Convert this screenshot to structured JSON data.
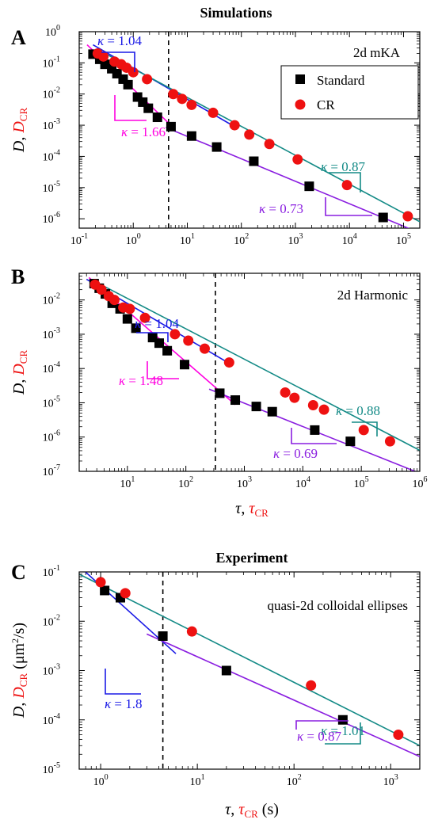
{
  "chart_data": [
    {
      "panel": "A",
      "type": "scatter",
      "title": "Simulations",
      "label": "2d mKA",
      "xlabel": "τ, τCR",
      "ylabel": "D, DCR",
      "xscale": "log",
      "yscale": "log",
      "xlim": [
        0.1,
        200000
      ],
      "ylim": [
        5e-07,
        1
      ],
      "xticks": [
        "10-1",
        "100",
        "101",
        "102",
        "103",
        "104",
        "105"
      ],
      "yticks": [
        "10-6",
        "10-5",
        "10-4",
        "10-3",
        "10-2",
        "10-1",
        "100"
      ],
      "legend": {
        "position": "top-right",
        "entries": [
          "Standard",
          "CR"
        ]
      },
      "colors": {
        "standard": "#000000",
        "cr": "#ee1111",
        "blue": "#1a1ae6",
        "magenta": "#ff00e0",
        "teal": "#138a86",
        "purple": "#8a1ee0"
      },
      "vline_x": 4.5,
      "series": [
        {
          "name": "Standard",
          "marker": "square",
          "x": [
            0.18,
            0.24,
            0.3,
            0.4,
            0.5,
            0.65,
            0.8,
            1.2,
            1.5,
            1.9,
            2.8,
            5.0,
            12,
            35,
            170,
            1800,
            42000
          ],
          "y": [
            0.19,
            0.13,
            0.09,
            0.065,
            0.045,
            0.03,
            0.02,
            0.008,
            0.0055,
            0.0035,
            0.0018,
            0.0009,
            0.00045,
            0.0002,
            7e-05,
            1.1e-05,
            1.1e-06
          ]
        },
        {
          "name": "CR",
          "marker": "circle",
          "x": [
            0.22,
            0.28,
            0.45,
            0.6,
            0.75,
            1.0,
            1.8,
            5.5,
            8,
            12,
            30,
            75,
            140,
            330,
            1100,
            9000,
            120000
          ],
          "y": [
            0.2,
            0.16,
            0.11,
            0.09,
            0.07,
            0.05,
            0.03,
            0.01,
            0.007,
            0.0045,
            0.0025,
            0.001,
            0.0005,
            0.00025,
            8e-05,
            1.2e-05,
            1.2e-06
          ]
        }
      ],
      "fits": [
        {
          "color": "blue",
          "kappa": "κ = 1.04",
          "x": [
            0.18,
            75
          ],
          "y": [
            0.38,
            0.0009
          ]
        },
        {
          "color": "magenta",
          "kappa": "κ = 1.66",
          "x": [
            0.14,
            6
          ],
          "y": [
            0.38,
            0.00073
          ]
        },
        {
          "color": "teal",
          "kappa": "κ = 0.87",
          "x": [
            0.3,
            200000
          ],
          "y": [
            0.2,
            8e-07
          ]
        },
        {
          "color": "purple",
          "kappa": "κ = 0.73",
          "x": [
            4,
            200000
          ],
          "y": [
            0.00085,
            3.5e-07
          ]
        }
      ]
    },
    {
      "panel": "B",
      "type": "scatter",
      "title": "",
      "label": "2d Harmonic",
      "xlabel": "τ, τCR",
      "ylabel": "D, DCR",
      "xscale": "log",
      "yscale": "log",
      "xlim": [
        1.5,
        1000000
      ],
      "ylim": [
        1e-07,
        0.06
      ],
      "xticks": [
        "101",
        "102",
        "103",
        "104",
        "105",
        "106"
      ],
      "yticks": [
        "10-7",
        "10-6",
        "10-5",
        "10-4",
        "10-3",
        "10-2"
      ],
      "vline_x": 320,
      "series": [
        {
          "name": "Standard",
          "marker": "square",
          "x": [
            2.7,
            3.3,
            4.2,
            5.5,
            7.5,
            10,
            14,
            27,
            35,
            48,
            95,
            380,
            700,
            1600,
            3000,
            16000,
            65000
          ],
          "y": [
            0.03,
            0.022,
            0.015,
            0.008,
            0.0055,
            0.0028,
            0.0015,
            0.0008,
            0.00055,
            0.00033,
            0.00013,
            1.9e-05,
            1.2e-05,
            7.8e-06,
            5.5e-06,
            1.6e-06,
            7.5e-07
          ]
        },
        {
          "name": "CR",
          "marker": "circle",
          "x": [
            2.8,
            3.6,
            4.8,
            6.0,
            8.5,
            11,
            20,
            65,
            110,
            210,
            550,
            5000,
            7200,
            15000,
            23000,
            110000,
            310000
          ],
          "y": [
            0.028,
            0.02,
            0.013,
            0.01,
            0.006,
            0.0055,
            0.003,
            0.001,
            0.00065,
            0.00038,
            0.00015,
            2e-05,
            1.4e-05,
            8.5e-06,
            6.3e-06,
            1.6e-06,
            7.5e-07
          ]
        }
      ],
      "fits": [
        {
          "color": "blue",
          "kappa": "κ = 1.04",
          "x": [
            2,
            600
          ],
          "y": [
            0.04,
            0.00013
          ]
        },
        {
          "color": "magenta",
          "kappa": "κ = 1.48",
          "x": [
            2.2,
            700
          ],
          "y": [
            0.045,
            8.8e-06
          ]
        },
        {
          "color": "teal",
          "kappa": "κ = 0.88",
          "x": [
            4,
            1000000
          ],
          "y": [
            0.025,
            4.1e-07
          ]
        },
        {
          "color": "purple",
          "kappa": "κ = 0.69",
          "x": [
            250,
            1000000
          ],
          "y": [
            2.5e-05,
            8.8e-08
          ]
        }
      ]
    },
    {
      "panel": "C",
      "type": "scatter",
      "title": "Experiment",
      "label": "quasi-2d colloidal ellipses",
      "xlabel": "τ, τCR (s)",
      "ylabel": "D, DCR (μm2/s)",
      "xscale": "log",
      "yscale": "log",
      "xlim": [
        0.6,
        2000
      ],
      "ylim": [
        1e-05,
        0.1
      ],
      "xticks": [
        "100",
        "101",
        "102",
        "103"
      ],
      "yticks": [
        "10-5",
        "10-4",
        "10-3",
        "10-2",
        "10-1"
      ],
      "vline_x": 4.4,
      "series": [
        {
          "name": "Standard",
          "marker": "square",
          "x": [
            1.1,
            1.6,
            4.4,
            20,
            320
          ],
          "y": [
            0.042,
            0.03,
            0.005,
            0.001,
            0.0001
          ]
        },
        {
          "name": "CR",
          "marker": "circle",
          "x": [
            1.0,
            1.8,
            8.8,
            150,
            1200
          ],
          "y": [
            0.062,
            0.037,
            0.0062,
            0.0005,
            5e-05
          ]
        }
      ],
      "fits": [
        {
          "color": "blue",
          "kappa": "κ = 1.8",
          "x": [
            0.6,
            6
          ],
          "y": [
            0.13,
            0.0022
          ]
        },
        {
          "color": "teal",
          "kappa": "κ = 1.01",
          "x": [
            0.6,
            2000
          ],
          "y": [
            0.09,
            3e-05
          ]
        },
        {
          "color": "purple",
          "kappa": "κ = 0.87",
          "x": [
            3,
            2000
          ],
          "y": [
            0.0055,
            1.8e-05
          ]
        }
      ]
    }
  ]
}
